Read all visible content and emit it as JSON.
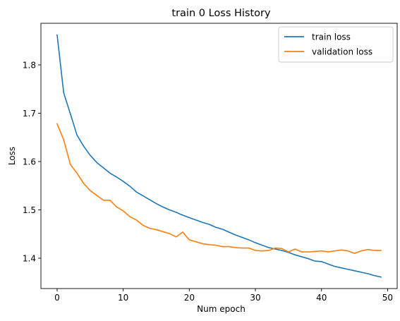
{
  "chart_data": {
    "type": "line",
    "title": "train 0 Loss History",
    "xlabel": "Num epoch",
    "ylabel": "Loss",
    "xlim": [
      -2.45,
      51.45
    ],
    "ylim": [
      1.3372,
      1.8861
    ],
    "xticks": [
      0,
      10,
      20,
      30,
      40,
      50
    ],
    "yticks": [
      1.4,
      1.5,
      1.6,
      1.7,
      1.8
    ],
    "grid": false,
    "legend": "top-right",
    "x": [
      0,
      1,
      2,
      3,
      4,
      5,
      6,
      7,
      8,
      9,
      10,
      11,
      12,
      13,
      14,
      15,
      16,
      17,
      18,
      19,
      20,
      21,
      22,
      23,
      24,
      25,
      26,
      27,
      28,
      29,
      30,
      31,
      32,
      33,
      34,
      35,
      36,
      37,
      38,
      39,
      40,
      41,
      42,
      43,
      44,
      45,
      46,
      47,
      48,
      49
    ],
    "series": [
      {
        "name": "train loss",
        "color": "#1f77b4",
        "values": [
          1.862,
          1.742,
          1.699,
          1.655,
          1.632,
          1.613,
          1.598,
          1.587,
          1.576,
          1.568,
          1.559,
          1.549,
          1.537,
          1.529,
          1.521,
          1.513,
          1.506,
          1.5,
          1.495,
          1.489,
          1.484,
          1.479,
          1.474,
          1.47,
          1.464,
          1.46,
          1.454,
          1.448,
          1.443,
          1.438,
          1.432,
          1.427,
          1.422,
          1.419,
          1.416,
          1.412,
          1.407,
          1.403,
          1.399,
          1.394,
          1.393,
          1.388,
          1.383,
          1.38,
          1.377,
          1.374,
          1.371,
          1.368,
          1.364,
          1.361
        ]
      },
      {
        "name": "validation loss",
        "color": "#ff7f0e",
        "values": [
          1.678,
          1.645,
          1.594,
          1.576,
          1.555,
          1.54,
          1.53,
          1.52,
          1.52,
          1.506,
          1.498,
          1.486,
          1.479,
          1.468,
          1.462,
          1.459,
          1.455,
          1.451,
          1.444,
          1.454,
          1.438,
          1.434,
          1.43,
          1.428,
          1.427,
          1.424,
          1.424,
          1.422,
          1.421,
          1.421,
          1.416,
          1.415,
          1.416,
          1.421,
          1.42,
          1.413,
          1.419,
          1.413,
          1.413,
          1.414,
          1.415,
          1.413,
          1.415,
          1.417,
          1.415,
          1.41,
          1.415,
          1.418,
          1.416,
          1.416
        ]
      }
    ]
  }
}
